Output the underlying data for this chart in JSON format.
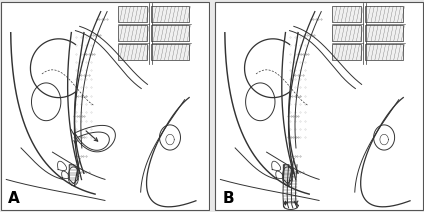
{
  "bg_color": "#ffffff",
  "fig_bg": "#e8e8e8",
  "lc": "#333333",
  "lw": 0.7,
  "figsize": [
    4.24,
    2.12
  ],
  "dpi": 100,
  "label_A": "A",
  "label_B": "B",
  "label_fontsize": 11,
  "label_fontweight": "bold"
}
